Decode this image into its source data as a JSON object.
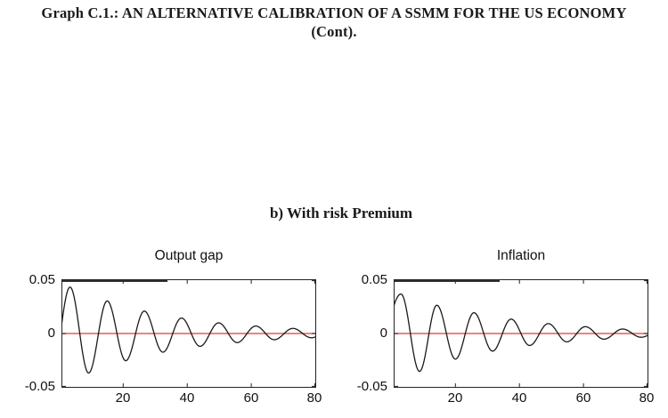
{
  "page": {
    "title_line1": "Graph C.1.: AN ALTERNATIVE CALIBRATION OF A SSMM FOR THE US ECONOMY",
    "title_line2": "(Cont).",
    "section_label": "b) With risk Premium"
  },
  "colors": {
    "text": "#1a1a1a",
    "axis": "#222222",
    "curve": "#1a1a1a",
    "zero_line": "#e65a55",
    "background": "#ffffff"
  },
  "chart_data": [
    {
      "type": "line",
      "title": "Output gap",
      "xlabel": "",
      "ylabel": "",
      "xlim": [
        1,
        80
      ],
      "ylim": [
        -0.05,
        0.05
      ],
      "x_ticks": [
        20,
        40,
        60,
        80
      ],
      "y_ticks": [
        0.05,
        0,
        -0.05
      ],
      "grid": false,
      "legend": false,
      "zero_line": {
        "y": 0,
        "color": "#e65a55"
      },
      "series": [
        {
          "name": "output-gap-impulse-response",
          "color": "#1a1a1a",
          "shape": "damped-oscillation",
          "points": [
            [
              -2.7,
              -0.0465
            ],
            [
              3.4,
              0.0435
            ],
            [
              9.2,
              -0.037
            ],
            [
              15,
              0.0305
            ],
            [
              20.8,
              -0.0255
            ],
            [
              26.6,
              0.021
            ],
            [
              32.4,
              -0.0175
            ],
            [
              38.2,
              0.0145
            ],
            [
              44,
              -0.012
            ],
            [
              49.8,
              0.01
            ],
            [
              55.6,
              -0.0085
            ],
            [
              61.4,
              0.007
            ],
            [
              67.2,
              -0.0058
            ],
            [
              73,
              0.0048
            ],
            [
              78.8,
              -0.004
            ],
            [
              84.6,
              0.0033
            ]
          ]
        }
      ]
    },
    {
      "type": "line",
      "title": "Inflation",
      "xlabel": "",
      "ylabel": "",
      "xlim": [
        1,
        80
      ],
      "ylim": [
        -0.05,
        0.05
      ],
      "x_ticks": [
        20,
        40,
        60,
        80
      ],
      "y_ticks": [
        0.05,
        0,
        -0.05
      ],
      "grid": false,
      "legend": false,
      "zero_line": {
        "y": 0,
        "color": "#e65a55"
      },
      "series": [
        {
          "name": "inflation-impulse-response",
          "color": "#1a1a1a",
          "shape": "damped-oscillation",
          "points": [
            [
              -6,
              -0.04
            ],
            [
              3,
              0.037
            ],
            [
              8.8,
              -0.0355
            ],
            [
              14.2,
              0.0265
            ],
            [
              20,
              -0.024
            ],
            [
              25.8,
              0.0195
            ],
            [
              31.6,
              -0.0165
            ],
            [
              37.4,
              0.0135
            ],
            [
              43.2,
              -0.0112
            ],
            [
              49,
              0.0093
            ],
            [
              54.8,
              -0.0078
            ],
            [
              60.6,
              0.0064
            ],
            [
              66.4,
              -0.0053
            ],
            [
              72.2,
              0.0042
            ],
            [
              78,
              -0.0035
            ],
            [
              83.8,
              0.0029
            ]
          ]
        }
      ]
    }
  ]
}
